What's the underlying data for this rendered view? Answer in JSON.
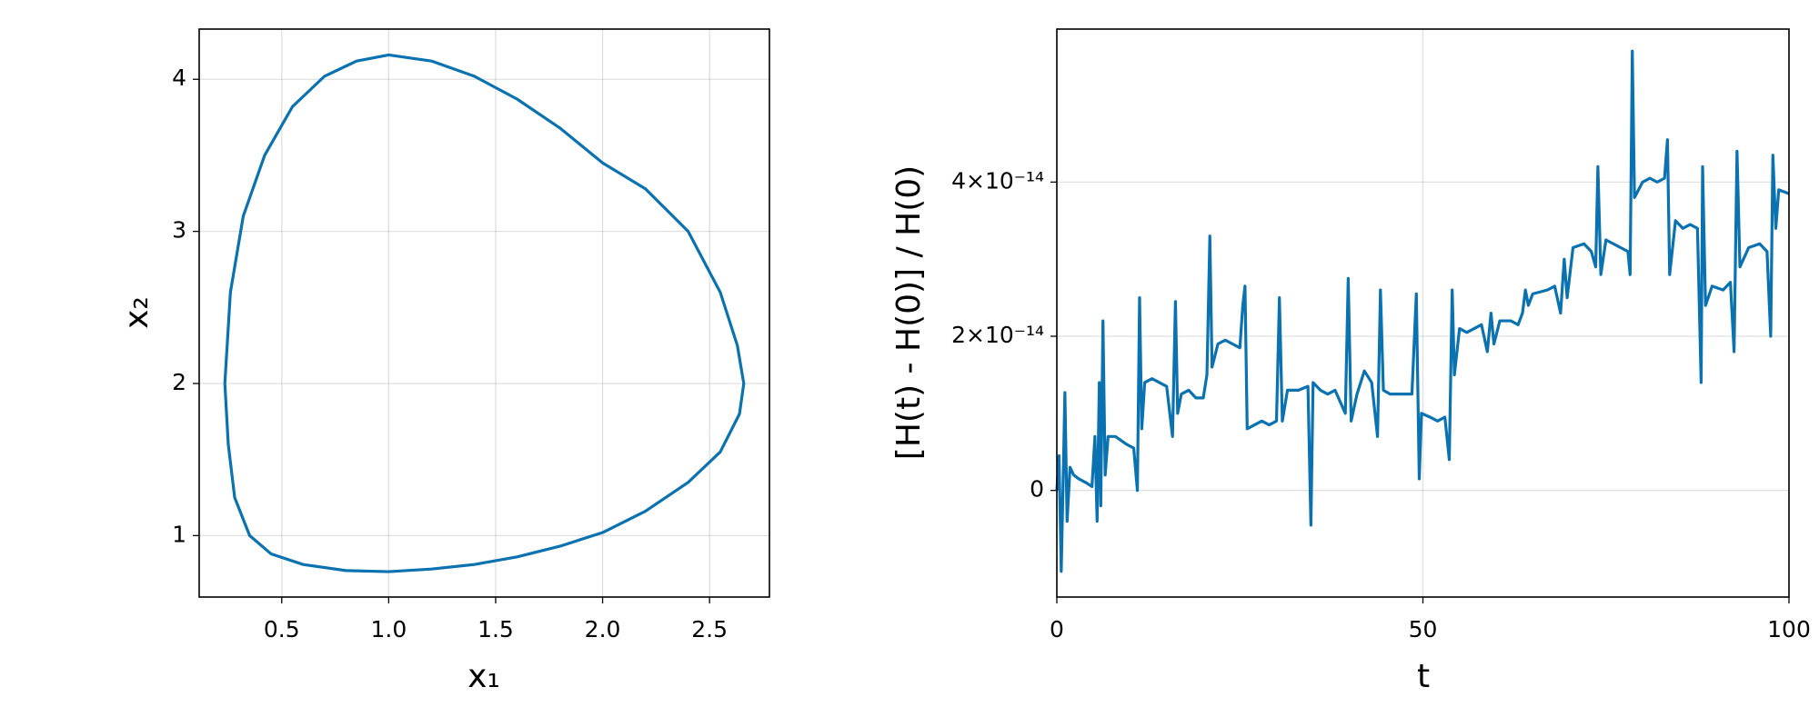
{
  "chart_data": [
    {
      "type": "line",
      "xlabel": "x₁",
      "ylabel": "x₂",
      "color": "#0a72b0",
      "grid": true,
      "xlim": [
        0.114,
        2.78
      ],
      "ylim": [
        0.596,
        4.33
      ],
      "xticks": [
        0.5,
        {
          "value": 1,
          "label": "1.0"
        },
        1.5,
        {
          "value": 2,
          "label": "2.0"
        },
        2.5
      ],
      "yticks": [
        1,
        2,
        3,
        4
      ],
      "x": [
        0.234,
        0.26,
        0.32,
        0.42,
        0.55,
        0.7,
        0.85,
        1.0,
        1.2,
        1.4,
        1.6,
        1.8,
        2.0,
        2.2,
        2.4,
        2.55,
        2.63,
        2.66,
        2.64,
        2.55,
        2.4,
        2.2,
        2.0,
        1.8,
        1.6,
        1.4,
        1.2,
        1.0,
        0.8,
        0.6,
        0.45,
        0.35,
        0.28,
        0.25,
        0.234
      ],
      "values": [
        2.0,
        2.6,
        3.1,
        3.5,
        3.82,
        4.02,
        4.12,
        4.16,
        4.12,
        4.02,
        3.87,
        3.68,
        3.45,
        3.28,
        3.0,
        2.6,
        2.25,
        2.0,
        1.8,
        1.55,
        1.35,
        1.16,
        1.02,
        0.93,
        0.86,
        0.81,
        0.78,
        0.763,
        0.77,
        0.81,
        0.88,
        1.0,
        1.25,
        1.6,
        2.0
      ]
    },
    {
      "type": "line",
      "xlabel": "t",
      "ylabel": "[H(t) - H(0)] / H(0)",
      "color": "#0a72b0",
      "grid": true,
      "xlim": [
        0,
        100
      ],
      "ylim": [
        -1.383e-14,
        5.985e-14
      ],
      "xticks": [
        0,
        50,
        100
      ],
      "yticks": [
        0,
        {
          "value": 2e-14,
          "label": "2×10⁻¹⁴"
        },
        {
          "value": 4e-14,
          "label": "4×10⁻¹⁴"
        }
      ],
      "x": [
        0,
        0.3,
        0.6,
        0.9,
        1.1,
        1.4,
        1.8,
        2.3,
        3,
        4,
        4.8,
        5.2,
        5.5,
        5.8,
        6.0,
        6.3,
        6.6,
        7,
        8,
        9.5,
        10.5,
        11,
        11.3,
        11.6,
        12,
        13,
        14,
        15,
        15.8,
        16.2,
        16.5,
        17,
        18,
        19,
        20,
        20.5,
        20.9,
        21.2,
        22,
        23,
        24,
        25,
        25.4,
        25.7,
        26,
        27,
        28,
        29,
        30,
        30.4,
        30.8,
        31.5,
        33,
        34.3,
        34.7,
        35,
        36,
        37,
        38,
        39.4,
        39.8,
        40.2,
        41,
        42,
        43,
        43.8,
        44.2,
        44.6,
        45.5,
        47,
        48.5,
        49.1,
        49.5,
        49.8,
        51,
        52,
        53,
        53.6,
        54,
        54.3,
        55,
        56,
        57,
        58,
        58.8,
        59.3,
        59.7,
        60.5,
        62,
        63,
        63.6,
        64,
        64.4,
        65,
        67,
        68,
        68.8,
        69.3,
        69.7,
        70.5,
        72,
        73,
        73.6,
        73.9,
        74.3,
        75,
        76,
        77,
        78,
        78.3,
        78.6,
        78.9,
        80,
        81,
        82,
        83,
        83.4,
        83.7,
        84.5,
        85.5,
        86.5,
        87.5,
        88,
        88.2,
        88.6,
        89.5,
        91,
        92,
        92.5,
        92.9,
        93.3,
        94.5,
        96,
        97,
        97.5,
        97.8,
        98.2,
        98.6,
        100
      ],
      "values": [
        0,
        4.5e-15,
        -1.05e-14,
        3e-15,
        1.27e-14,
        -4e-15,
        3e-15,
        2e-15,
        1.5e-15,
        1e-15,
        5e-16,
        7e-15,
        -4e-15,
        1.4e-14,
        -2e-15,
        2.2e-14,
        2e-15,
        7e-15,
        7e-15,
        6e-15,
        5.5e-15,
        0,
        2.5e-14,
        8e-15,
        1.4e-14,
        1.45e-14,
        1.4e-14,
        1.35e-14,
        7e-15,
        2.45e-14,
        1e-14,
        1.25e-14,
        1.3e-14,
        1.2e-14,
        1.2e-14,
        1.5e-14,
        3.3e-14,
        1.6e-14,
        1.9e-14,
        1.95e-14,
        1.9e-14,
        1.85e-14,
        2.4e-14,
        2.65e-14,
        8e-15,
        8.5e-15,
        9e-15,
        8.5e-15,
        9e-15,
        2.5e-14,
        9e-15,
        1.3e-14,
        1.3e-14,
        1.35e-14,
        -4.5e-15,
        1.4e-14,
        1.3e-14,
        1.25e-14,
        1.3e-14,
        1e-14,
        2.75e-14,
        9e-15,
        1.25e-14,
        1.55e-14,
        1.4e-14,
        7e-15,
        2.6e-14,
        1.3e-14,
        1.25e-14,
        1.25e-14,
        1.25e-14,
        2.55e-14,
        1.5e-15,
        1e-14,
        9.5e-15,
        9e-15,
        9.5e-15,
        4e-15,
        2.6e-14,
        1.5e-14,
        2.1e-14,
        2.05e-14,
        2.1e-14,
        2.15e-14,
        1.8e-14,
        2.3e-14,
        1.9e-14,
        2.2e-14,
        2.2e-14,
        2.15e-14,
        2.3e-14,
        2.6e-14,
        2.4e-14,
        2.55e-14,
        2.6e-14,
        2.65e-14,
        2.3e-14,
        3e-14,
        2.5e-14,
        3.15e-14,
        3.2e-14,
        3.1e-14,
        2.9e-14,
        4.2e-14,
        2.8e-14,
        3.25e-14,
        3.2e-14,
        3.15e-14,
        3.1e-14,
        2.8e-14,
        5.7e-14,
        3.8e-14,
        4e-14,
        4.05e-14,
        4e-14,
        4.05e-14,
        4.55e-14,
        2.8e-14,
        3.5e-14,
        3.4e-14,
        3.45e-14,
        3.4e-14,
        1.4e-14,
        4.2e-14,
        2.4e-14,
        2.65e-14,
        2.6e-14,
        2.7e-14,
        1.8e-14,
        4.4e-14,
        2.9e-14,
        3.15e-14,
        3.2e-14,
        3.1e-14,
        2e-14,
        4.35e-14,
        3.4e-14,
        3.9e-14,
        3.85e-14
      ]
    }
  ]
}
